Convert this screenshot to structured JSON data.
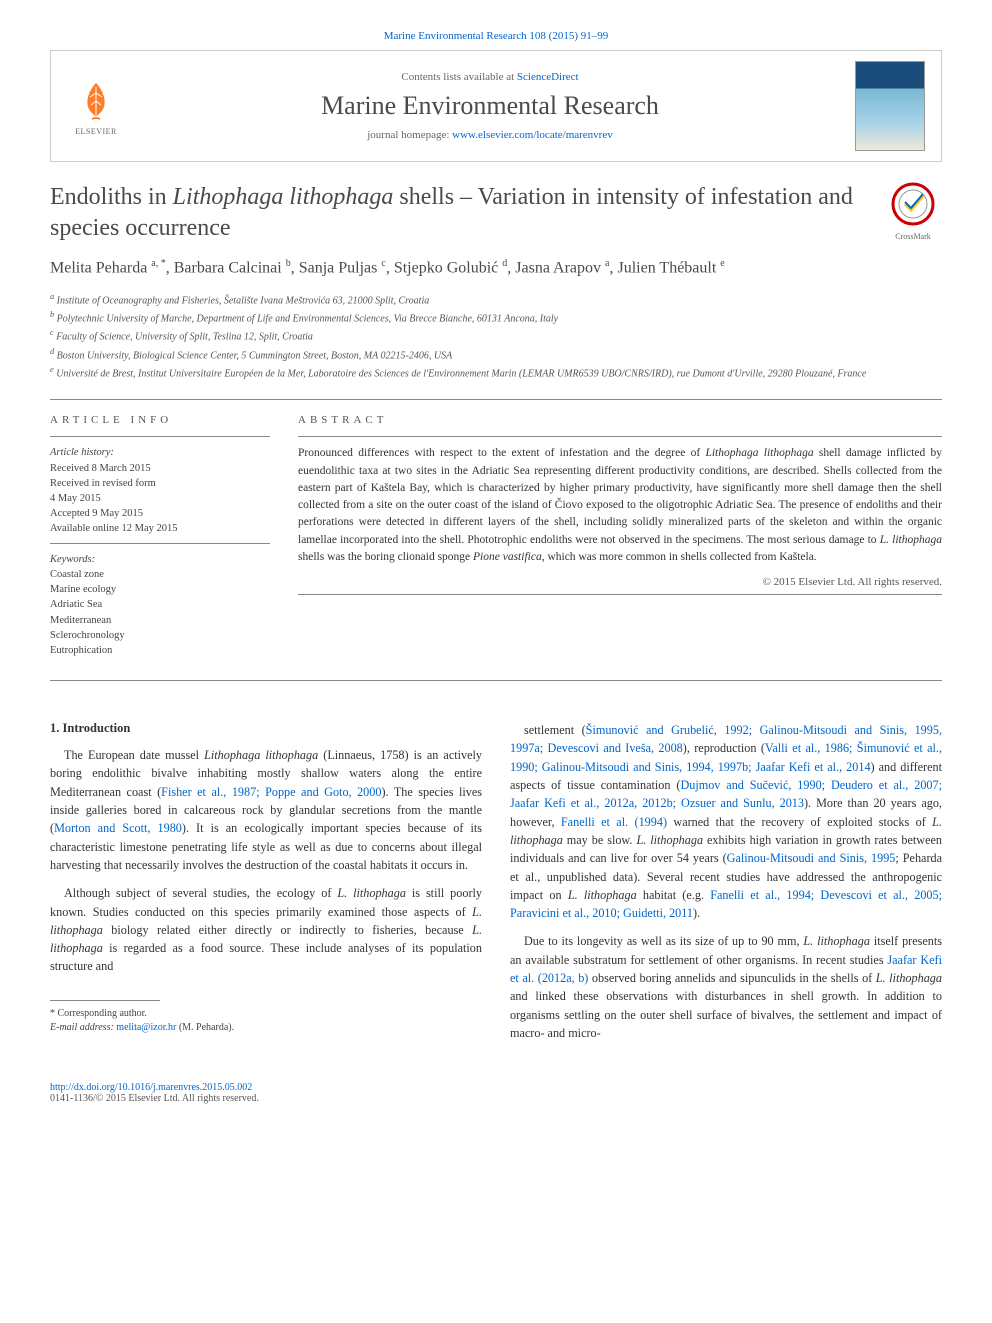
{
  "journal_ref": "Marine Environmental Research 108 (2015) 91–99",
  "header": {
    "contents_prefix": "Contents lists available at ",
    "contents_link": "ScienceDirect",
    "journal_title": "Marine Environmental Research",
    "homepage_prefix": "journal homepage: ",
    "homepage_url": "www.elsevier.com/locate/marenvrev",
    "publisher": "ELSEVIER"
  },
  "crossmark_label": "CrossMark",
  "title": {
    "pre": "Endoliths in ",
    "italic": "Lithophaga lithophaga",
    "post": " shells – Variation in intensity of infestation and species occurrence"
  },
  "authors_html": "Melita Peharda <sup>a, *</sup>, Barbara Calcinai <sup>b</sup>, Sanja Puljas <sup>c</sup>, Stjepko Golubić <sup>d</sup>, Jasna Arapov <sup>a</sup>, Julien Thébault <sup>e</sup>",
  "affiliations": [
    "a Institute of Oceanography and Fisheries, Šetalište Ivana Meštrovića 63, 21000 Split, Croatia",
    "b Polytechnic University of Marche, Department of Life and Environmental Sciences, Via Brecce Bianche, 60131 Ancona, Italy",
    "c Faculty of Science, University of Split, Teslina 12, Split, Croatia",
    "d Boston University, Biological Science Center, 5 Cummington Street, Boston, MA 02215-2406, USA",
    "e Université de Brest, Institut Universitaire Européen de la Mer, Laboratoire des Sciences de l'Environnement Marin (LEMAR UMR6539 UBO/CNRS/IRD), rue Dumont d'Urville, 29280 Plouzané, France"
  ],
  "article_info": {
    "label": "ARTICLE INFO",
    "history_label": "Article history:",
    "history": [
      "Received 8 March 2015",
      "Received in revised form",
      "4 May 2015",
      "Accepted 9 May 2015",
      "Available online 12 May 2015"
    ],
    "keywords_label": "Keywords:",
    "keywords": [
      "Coastal zone",
      "Marine ecology",
      "Adriatic Sea",
      "Mediterranean",
      "Sclerochronology",
      "Eutrophication"
    ]
  },
  "abstract": {
    "label": "ABSTRACT",
    "text_parts": [
      {
        "t": "Pronounced differences with respect to the extent of infestation and the degree of "
      },
      {
        "t": "Lithophaga lithophaga",
        "i": true
      },
      {
        "t": " shell damage inflicted by euendolithic taxa at two sites in the Adriatic Sea representing different productivity conditions, are described. Shells collected from the eastern part of Kaštela Bay, which is characterized by higher primary productivity, have significantly more shell damage then the shell collected from a site on the outer coast of the island of Čiovo exposed to the oligotrophic Adriatic Sea. The presence of endoliths and their perforations were detected in different layers of the shell, including solidly mineralized parts of the skeleton and within the organic lamellae incorporated into the shell. Phototrophic endoliths were not observed in the specimens. The most serious damage to "
      },
      {
        "t": "L. lithophaga",
        "i": true
      },
      {
        "t": " shells was the boring clionaid sponge "
      },
      {
        "t": "Pione vastifica",
        "i": true
      },
      {
        "t": ", which was more common in shells collected from Kaštela."
      }
    ],
    "copyright": "© 2015 Elsevier Ltd. All rights reserved."
  },
  "body": {
    "heading": "1. Introduction",
    "left_paras": [
      [
        {
          "t": "The European date mussel "
        },
        {
          "t": "Lithophaga lithophaga",
          "i": true
        },
        {
          "t": " (Linnaeus, 1758) is an actively boring endolithic bivalve inhabiting mostly shallow waters along the entire Mediterranean coast ("
        },
        {
          "t": "Fisher et al., 1987; Poppe and Goto, 2000",
          "l": true
        },
        {
          "t": "). The species lives inside galleries bored in calcareous rock by glandular secretions from the mantle ("
        },
        {
          "t": "Morton and Scott, 1980",
          "l": true
        },
        {
          "t": "). It is an ecologically important species because of its characteristic limestone penetrating life style as well as due to concerns about illegal harvesting that necessarily involves the destruction of the coastal habitats it occurs in."
        }
      ],
      [
        {
          "t": "Although subject of several studies, the ecology of "
        },
        {
          "t": "L. lithophaga",
          "i": true
        },
        {
          "t": " is still poorly known. Studies conducted on this species primarily examined those aspects of "
        },
        {
          "t": "L. lithophaga",
          "i": true
        },
        {
          "t": " biology related either directly or indirectly to fisheries, because "
        },
        {
          "t": "L. lithophaga",
          "i": true
        },
        {
          "t": " is regarded as a food source. These include analyses of its population structure and"
        }
      ]
    ],
    "right_paras": [
      [
        {
          "t": "settlement ("
        },
        {
          "t": "Šimunović and Grubelić, 1992; Galinou-Mitsoudi and Sinis, 1995, 1997a; Devescovi and Iveša, 2008",
          "l": true
        },
        {
          "t": "), reproduction ("
        },
        {
          "t": "Valli et al., 1986; Šimunović et al., 1990; Galinou-Mitsoudi and Sinis, 1994, 1997b; Jaafar Kefi et al., 2014",
          "l": true
        },
        {
          "t": ") and different aspects of tissue contamination ("
        },
        {
          "t": "Dujmov and Sučević, 1990; Deudero et al., 2007; Jaafar Kefi et al., 2012a, 2012b; Ozsuer and Sunlu, 2013",
          "l": true
        },
        {
          "t": "). More than 20 years ago, however, "
        },
        {
          "t": "Fanelli et al. (1994)",
          "l": true
        },
        {
          "t": " warned that the recovery of exploited stocks of "
        },
        {
          "t": "L. lithophaga",
          "i": true
        },
        {
          "t": " may be slow. "
        },
        {
          "t": "L. lithophaga",
          "i": true
        },
        {
          "t": " exhibits high variation in growth rates between individuals and can live for over 54 years ("
        },
        {
          "t": "Galinou-Mitsoudi and Sinis, 1995",
          "l": true
        },
        {
          "t": "; Peharda et al., unpublished data). Several recent studies have addressed the anthropogenic impact on "
        },
        {
          "t": "L. lithophaga",
          "i": true
        },
        {
          "t": " habitat (e.g. "
        },
        {
          "t": "Fanelli et al., 1994; Devescovi et al., 2005; Paravicini et al., 2010; Guidetti, 2011",
          "l": true
        },
        {
          "t": ")."
        }
      ],
      [
        {
          "t": "Due to its longevity as well as its size of up to 90 mm, "
        },
        {
          "t": "L. lithophaga",
          "i": true
        },
        {
          "t": " itself presents an available substratum for settlement of other organisms. In recent studies "
        },
        {
          "t": "Jaafar Kefi et al. (2012a, b)",
          "l": true
        },
        {
          "t": " observed boring annelids and sipunculids in the shells of "
        },
        {
          "t": "L. lithophaga",
          "i": true
        },
        {
          "t": " and linked these observations with disturbances in shell growth. In addition to organisms settling on the outer shell surface of bivalves, the settlement and impact of macro- and micro-"
        }
      ]
    ]
  },
  "footnotes": {
    "corresponding": "* Corresponding author.",
    "email_label": "E-mail address: ",
    "email": "melita@izor.hr",
    "email_person": " (M. Peharda)."
  },
  "footer": {
    "doi": "http://dx.doi.org/10.1016/j.marenvres.2015.05.002",
    "issn_line": "0141-1136/© 2015 Elsevier Ltd. All rights reserved."
  },
  "colors": {
    "link": "#0066cc",
    "text": "#333333",
    "heading": "#4a4a4a",
    "rule": "#888888",
    "elsevier_orange": "#ff6600"
  }
}
